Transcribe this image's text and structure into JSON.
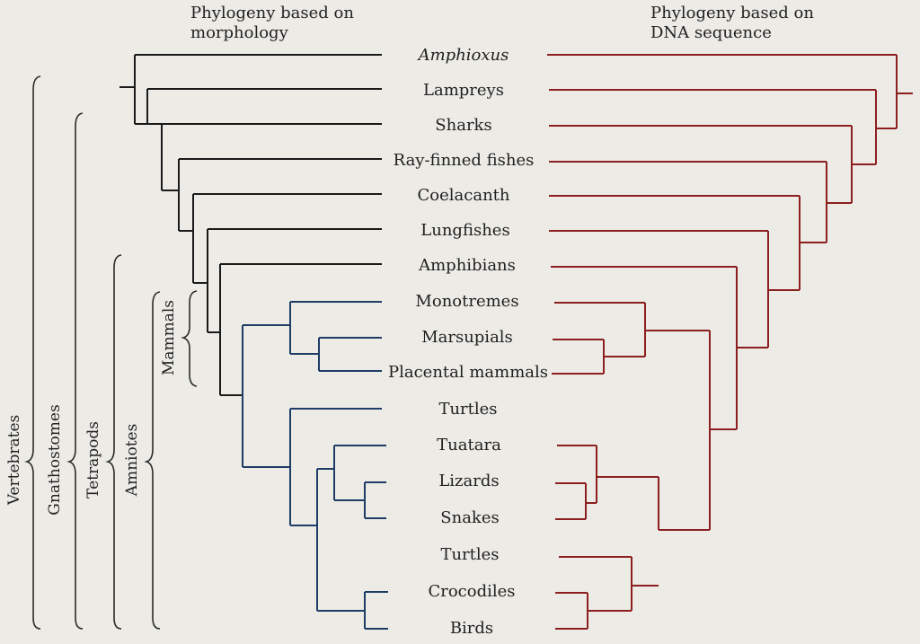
{
  "titles": {
    "left": [
      "Phylogeny based on",
      "morphology"
    ],
    "right": [
      "Phylogeny based on",
      "DNA sequence"
    ]
  },
  "taxa": [
    {
      "label": "Amphioxus",
      "italic": true
    },
    {
      "label": "Lampreys"
    },
    {
      "label": "Sharks"
    },
    {
      "label": "Ray-finned fishes"
    },
    {
      "label": "Coelacanth"
    },
    {
      "label": "Lungfishes"
    },
    {
      "label": "Amphibians"
    },
    {
      "label": "Monotremes"
    },
    {
      "label": "Marsupials"
    },
    {
      "label": "Placental mammals"
    },
    {
      "label": "Turtles"
    },
    {
      "label": "Tuatara"
    },
    {
      "label": "Lizards"
    },
    {
      "label": "Snakes"
    },
    {
      "label": "Turtles"
    },
    {
      "label": "Crocodiles"
    },
    {
      "label": "Birds"
    }
  ],
  "groups": [
    "Vertebrates",
    "Gnathostomes",
    "Tetrapods",
    "Amniotes",
    "Mammals"
  ],
  "colors": {
    "morphology_top": "#1a1a1a",
    "morphology_bottom": "#1e3d66",
    "dna": "#8c1f1f",
    "background": "#ecebe6"
  }
}
